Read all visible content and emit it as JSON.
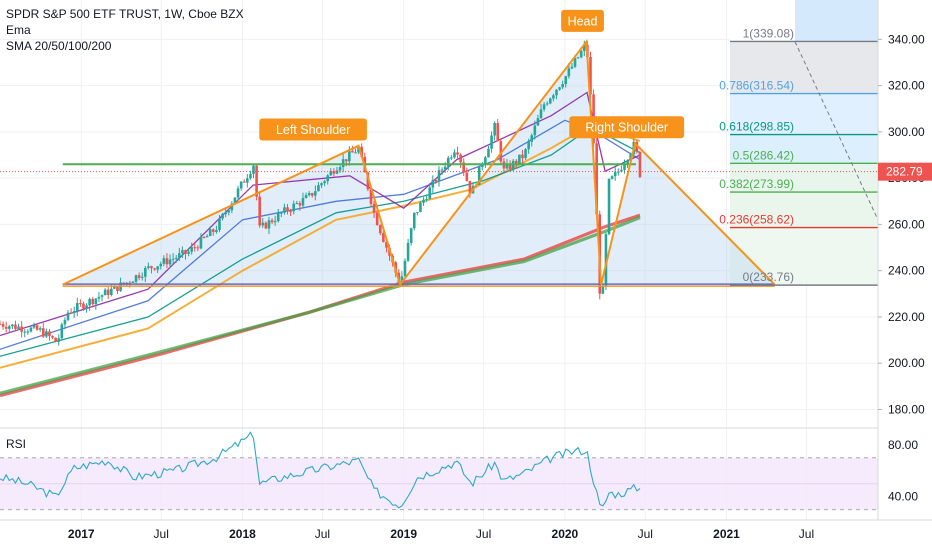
{
  "legend": {
    "title": "SPDR S&P 500 ETF TRUST, 1W, Cboe BZX",
    "line2": "Ema",
    "line3": "SMA 20/50/100/200"
  },
  "rsi_label": "RSI",
  "colors": {
    "pattern_orange": "#f7931a",
    "price_up": "#26a69a",
    "price_down": "#ef5350",
    "current_price_tag": "#ef5350",
    "neckline_green": "#4caf50",
    "fib_green_fill": "#e8f5e9",
    "fib_red_fill": "#fde4e4",
    "fib_blue_fill": "#ddeeff",
    "fib_gray_fill": "#e7e7e7",
    "rsi_line": "#2ea8c8",
    "rsi_band": "#f3e6fb"
  },
  "chart_data": [
    {
      "type": "candlestick",
      "title": "SPDR S&P 500 ETF TRUST, 1W, Cboe BZX",
      "x_tick_labels": [
        "2017",
        "Jul",
        "2018",
        "Jul",
        "2019",
        "Jul",
        "2020",
        "Jul",
        "2021",
        "Jul"
      ],
      "y_tick_labels": [
        "180.00",
        "200.00",
        "220.00",
        "240.00",
        "260.00",
        "280.00",
        "300.00",
        "320.00",
        "340.00"
      ],
      "ylim": [
        172,
        357
      ],
      "current_price": "282.79",
      "price_path": [
        [
          "2016-07-01",
          217
        ],
        [
          "2016-10-01",
          214
        ],
        [
          "2016-11-07",
          209
        ],
        [
          "2016-12-01",
          222
        ],
        [
          "2017-02-01",
          228
        ],
        [
          "2017-04-15",
          235
        ],
        [
          "2017-06-01",
          241
        ],
        [
          "2017-09-01",
          248
        ],
        [
          "2017-11-01",
          258
        ],
        [
          "2018-01-26",
          286
        ],
        [
          "2018-02-09",
          258
        ],
        [
          "2018-04-01",
          265
        ],
        [
          "2018-06-01",
          272
        ],
        [
          "2018-08-01",
          285
        ],
        [
          "2018-09-21",
          293
        ],
        [
          "2018-10-26",
          265
        ],
        [
          "2018-12-24",
          234
        ],
        [
          "2019-01-25",
          264
        ],
        [
          "2019-04-01",
          285
        ],
        [
          "2019-04-30",
          294
        ],
        [
          "2019-06-03",
          273
        ],
        [
          "2019-07-26",
          302
        ],
        [
          "2019-08-15",
          283
        ],
        [
          "2019-10-01",
          290
        ],
        [
          "2019-11-15",
          312
        ],
        [
          "2020-01-03",
          324
        ],
        [
          "2020-02-19",
          338
        ],
        [
          "2020-03-05",
          300
        ],
        [
          "2020-03-23",
          218
        ],
        [
          "2020-04-10",
          278
        ],
        [
          "2020-05-01",
          283
        ],
        [
          "2020-06-08",
          295
        ],
        [
          "2020-06-19",
          282
        ]
      ],
      "moving_averages": [
        {
          "color": "#e53935",
          "points": [
            [
              "2016-07-01",
              186
            ],
            [
              "2017-07-01",
              204
            ],
            [
              "2018-06-01",
              222
            ],
            [
              "2019-01-01",
              235
            ],
            [
              "2019-10-01",
              245
            ],
            [
              "2020-04-01",
              259
            ],
            [
              "2020-06-19",
              264
            ]
          ]
        },
        {
          "color": "#43a047",
          "points": [
            [
              "2016-07-01",
              187
            ],
            [
              "2017-07-01",
              205
            ],
            [
              "2018-06-01",
              222
            ],
            [
              "2019-01-01",
              234
            ],
            [
              "2019-10-01",
              244
            ],
            [
              "2020-04-01",
              257
            ],
            [
              "2020-06-19",
              263
            ]
          ]
        },
        {
          "color": "#f5a623",
          "points": [
            [
              "2016-07-01",
              198
            ],
            [
              "2017-06-01",
              215
            ],
            [
              "2018-01-01",
              240
            ],
            [
              "2018-08-01",
              262
            ],
            [
              "2019-01-01",
              268
            ],
            [
              "2019-06-01",
              275
            ],
            [
              "2019-12-01",
              293
            ],
            [
              "2020-03-01",
              303
            ],
            [
              "2020-06-19",
              296
            ]
          ]
        },
        {
          "color": "#009688",
          "points": [
            [
              "2016-07-01",
              203
            ],
            [
              "2017-06-01",
              220
            ],
            [
              "2018-01-01",
              245
            ],
            [
              "2018-08-01",
              265
            ],
            [
              "2019-01-01",
              270
            ],
            [
              "2019-07-01",
              279
            ],
            [
              "2019-12-01",
              290
            ],
            [
              "2020-03-01",
              302
            ],
            [
              "2020-06-19",
              291
            ]
          ]
        },
        {
          "color": "#3f6fd8",
          "points": [
            [
              "2016-07-01",
              206
            ],
            [
              "2017-06-01",
              227
            ],
            [
              "2018-01-01",
              262
            ],
            [
              "2018-08-01",
              270
            ],
            [
              "2019-01-01",
              273
            ],
            [
              "2019-08-01",
              288
            ],
            [
              "2020-01-01",
              305
            ],
            [
              "2020-03-10",
              300
            ],
            [
              "2020-06-19",
              288
            ]
          ]
        },
        {
          "color": "#8e24aa",
          "points": [
            [
              "2016-07-01",
              212
            ],
            [
              "2017-06-01",
              232
            ],
            [
              "2018-01-25",
              277
            ],
            [
              "2018-09-01",
              281
            ],
            [
              "2019-01-01",
              267
            ],
            [
              "2019-05-01",
              288
            ],
            [
              "2019-12-01",
              307
            ],
            [
              "2020-02-20",
              317
            ],
            [
              "2020-04-01",
              283
            ],
            [
              "2020-06-19",
              290
            ]
          ]
        }
      ],
      "head_and_shoulders": {
        "labels": [
          "Left Shoulder",
          "Head",
          "Right Shoulder"
        ],
        "neckline": {
          "from": "2016-11-20",
          "to": "2020-06-10",
          "value": 286
        },
        "baseline": {
          "from": "2016-11-20",
          "to": "2021-04-20",
          "value": 233.76
        }
      },
      "fibonacci": {
        "levels": [
          {
            "ratio": "1",
            "value": 339.08,
            "label": "1(339.08)",
            "color": "#787b86"
          },
          {
            "ratio": "0.786",
            "value": 316.54,
            "label": "0.786(316.54)",
            "color": "#4fa3e0"
          },
          {
            "ratio": "0.618",
            "value": 298.85,
            "label": "0.618(298.85)",
            "color": "#089981"
          },
          {
            "ratio": "0.5",
            "value": 286.42,
            "label": "0.5(286.42)",
            "color": "#4caf50"
          },
          {
            "ratio": "0.382",
            "value": 273.99,
            "label": "0.382(273.99)",
            "color": "#4caf50"
          },
          {
            "ratio": "0.236",
            "value": 258.62,
            "label": "0.236(258.62)",
            "color": "#e53935"
          },
          {
            "ratio": "0",
            "value": 233.76,
            "label": "0(233.76)",
            "color": "#787b86"
          }
        ]
      }
    },
    {
      "type": "line",
      "title": "RSI",
      "y_tick_labels": [
        "40.00",
        "80.00"
      ],
      "ylim": [
        22,
        93
      ],
      "band": [
        30,
        70
      ],
      "series": [
        [
          "2016-07-01",
          55
        ],
        [
          "2016-09-01",
          50
        ],
        [
          "2016-11-04",
          40
        ],
        [
          "2016-12-15",
          62
        ],
        [
          "2017-03-01",
          68
        ],
        [
          "2017-05-01",
          55
        ],
        [
          "2017-08-01",
          60
        ],
        [
          "2017-11-01",
          70
        ],
        [
          "2018-01-26",
          88
        ],
        [
          "2018-02-09",
          50
        ],
        [
          "2018-04-01",
          55
        ],
        [
          "2018-07-01",
          62
        ],
        [
          "2018-09-21",
          68
        ],
        [
          "2018-10-26",
          45
        ],
        [
          "2018-12-24",
          33
        ],
        [
          "2019-02-01",
          55
        ],
        [
          "2019-04-30",
          67
        ],
        [
          "2019-06-03",
          50
        ],
        [
          "2019-07-26",
          66
        ],
        [
          "2019-08-15",
          52
        ],
        [
          "2019-10-01",
          58
        ],
        [
          "2019-12-01",
          70
        ],
        [
          "2020-01-20",
          75
        ],
        [
          "2020-02-19",
          76
        ],
        [
          "2020-03-23",
          28
        ],
        [
          "2020-04-10",
          43
        ],
        [
          "2020-05-01",
          42
        ],
        [
          "2020-06-12",
          47
        ],
        [
          "2020-06-19",
          46
        ]
      ]
    }
  ]
}
